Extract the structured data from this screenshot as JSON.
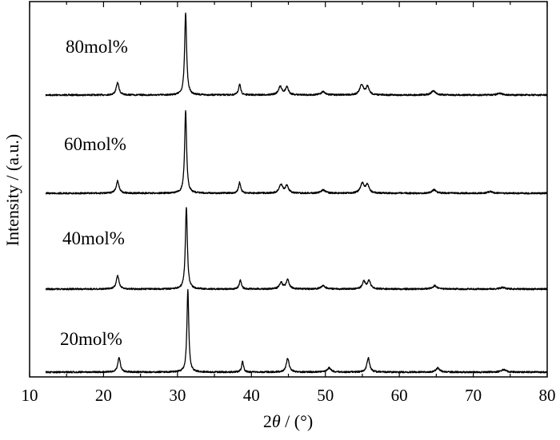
{
  "chart_data": {
    "type": "line",
    "xlabel_prefix": "2",
    "xlabel_symbol": "θ",
    "xlabel_unit": " / (°)",
    "ylabel": "Intensity / (a.u.)",
    "xlim": [
      10,
      80
    ],
    "x_ticks": [
      10,
      20,
      30,
      40,
      50,
      60,
      70,
      80
    ],
    "grid": false,
    "legend": "none",
    "layout": "stacked",
    "series": [
      {
        "name": "80mol%",
        "peaks": [
          {
            "x": 21.9,
            "h": 0.15,
            "w": 0.45
          },
          {
            "x": 31.1,
            "h": 1.0,
            "w": 0.32
          },
          {
            "x": 38.4,
            "h": 0.13,
            "w": 0.35
          },
          {
            "x": 43.9,
            "h": 0.1,
            "w": 0.6
          },
          {
            "x": 44.8,
            "h": 0.09,
            "w": 0.5
          },
          {
            "x": 49.7,
            "h": 0.04,
            "w": 0.7
          },
          {
            "x": 54.9,
            "h": 0.12,
            "w": 0.6
          },
          {
            "x": 55.7,
            "h": 0.1,
            "w": 0.5
          },
          {
            "x": 64.6,
            "h": 0.05,
            "w": 0.7
          },
          {
            "x": 73.6,
            "h": 0.02,
            "w": 0.8
          }
        ]
      },
      {
        "name": "60mol%",
        "peaks": [
          {
            "x": 21.9,
            "h": 0.15,
            "w": 0.45
          },
          {
            "x": 31.1,
            "h": 1.0,
            "w": 0.32
          },
          {
            "x": 38.4,
            "h": 0.13,
            "w": 0.35
          },
          {
            "x": 44.0,
            "h": 0.1,
            "w": 0.6
          },
          {
            "x": 44.8,
            "h": 0.09,
            "w": 0.5
          },
          {
            "x": 49.7,
            "h": 0.04,
            "w": 0.7
          },
          {
            "x": 55.0,
            "h": 0.12,
            "w": 0.6
          },
          {
            "x": 55.7,
            "h": 0.1,
            "w": 0.5
          },
          {
            "x": 64.7,
            "h": 0.04,
            "w": 0.7
          },
          {
            "x": 72.3,
            "h": 0.02,
            "w": 0.8
          }
        ]
      },
      {
        "name": "40mol%",
        "peaks": [
          {
            "x": 21.9,
            "h": 0.16,
            "w": 0.45
          },
          {
            "x": 31.2,
            "h": 1.0,
            "w": 0.32
          },
          {
            "x": 38.5,
            "h": 0.11,
            "w": 0.35
          },
          {
            "x": 44.0,
            "h": 0.08,
            "w": 0.5
          },
          {
            "x": 44.9,
            "h": 0.11,
            "w": 0.5
          },
          {
            "x": 49.7,
            "h": 0.04,
            "w": 0.7
          },
          {
            "x": 55.2,
            "h": 0.09,
            "w": 0.5
          },
          {
            "x": 55.9,
            "h": 0.1,
            "w": 0.5
          },
          {
            "x": 64.8,
            "h": 0.04,
            "w": 0.7
          },
          {
            "x": 74.0,
            "h": 0.02,
            "w": 0.8
          }
        ]
      },
      {
        "name": "20mol%",
        "peaks": [
          {
            "x": 22.1,
            "h": 0.18,
            "w": 0.4
          },
          {
            "x": 31.4,
            "h": 1.0,
            "w": 0.3
          },
          {
            "x": 38.8,
            "h": 0.13,
            "w": 0.3
          },
          {
            "x": 44.9,
            "h": 0.17,
            "w": 0.45
          },
          {
            "x": 50.5,
            "h": 0.05,
            "w": 0.6
          },
          {
            "x": 55.8,
            "h": 0.17,
            "w": 0.45
          },
          {
            "x": 65.2,
            "h": 0.05,
            "w": 0.6
          },
          {
            "x": 74.1,
            "h": 0.03,
            "w": 0.8
          }
        ]
      }
    ]
  }
}
